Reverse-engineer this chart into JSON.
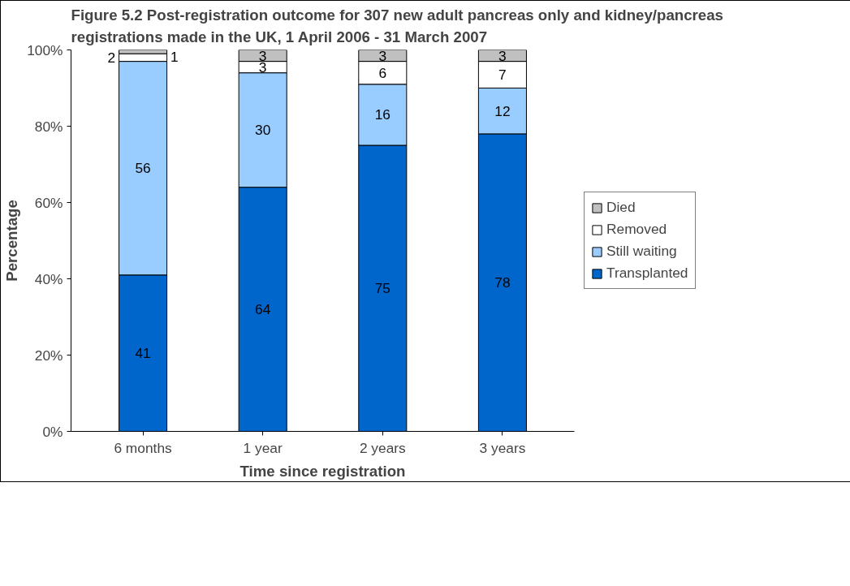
{
  "chart_data": {
    "type": "bar",
    "stacked": true,
    "title": "Figure 5.2     Post-registration outcome for 307 new adult pancreas only and kidney/pancreas registrations made in the UK, 1 April 2006 - 31 March 2007",
    "xlabel": "Time since registration",
    "ylabel": "Percentage",
    "categories": [
      "6 months",
      "1 year",
      "2 years",
      "3 years"
    ],
    "series": [
      {
        "name": "Transplanted",
        "color": "#0066cc",
        "values": [
          41,
          64,
          75,
          78
        ]
      },
      {
        "name": "Still waiting",
        "color": "#99ccff",
        "values": [
          56,
          30,
          16,
          12
        ]
      },
      {
        "name": "Removed",
        "color": "#ffffff",
        "values": [
          2,
          3,
          6,
          7
        ]
      },
      {
        "name": "Died",
        "color": "#c0c0c0",
        "values": [
          1,
          3,
          3,
          3
        ]
      }
    ],
    "ylim": [
      0,
      100
    ],
    "yticks": [
      {
        "value": 0,
        "label": "0%"
      },
      {
        "value": 20,
        "label": "20%"
      },
      {
        "value": 40,
        "label": "40%"
      },
      {
        "value": 60,
        "label": "60%"
      },
      {
        "value": 80,
        "label": "80%"
      },
      {
        "value": 100,
        "label": "100%"
      }
    ],
    "data_labels": true,
    "legend": "right",
    "grid": false
  }
}
